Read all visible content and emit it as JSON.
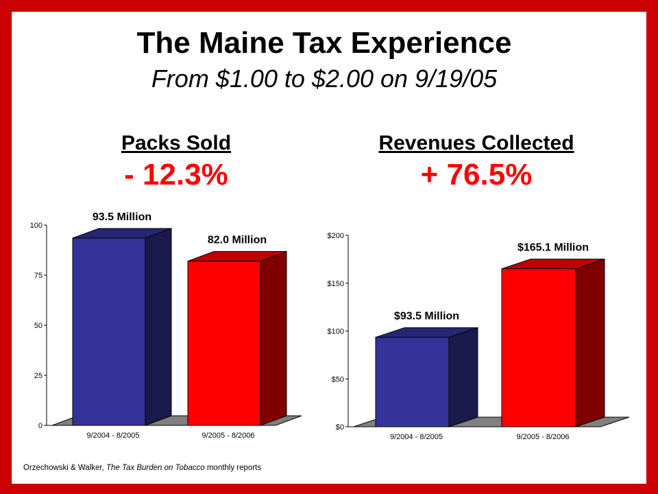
{
  "title": "The Maine Tax Experience",
  "subtitle": "From $1.00 to $2.00 on 9/19/05",
  "left_panel": {
    "heading": "Packs Sold",
    "change": "- 12.3%"
  },
  "right_panel": {
    "heading": "Revenues Collected",
    "change": "+ 76.5%"
  },
  "source": {
    "authors": "Orzechowski & Walker,",
    "publication": "The Tax Burden on Tobacco",
    "suffix": "monthly reports"
  },
  "colors": {
    "background": "#cc0000",
    "bar_blue": "#333399",
    "bar_red": "#ff0000",
    "change_text": "#ff0000"
  },
  "chart_data": [
    {
      "type": "bar",
      "categories": [
        "9/2004 - 8/2005",
        "9/2005 - 8/2006"
      ],
      "values": [
        93.5,
        82.0
      ],
      "data_labels": [
        "93.5 Million",
        "82.0 Million"
      ],
      "yticks": [
        "0",
        "25",
        "50",
        "75",
        "100"
      ],
      "ylim": [
        0,
        100
      ],
      "colors": [
        "#333399",
        "#ff0000"
      ],
      "grid": false
    },
    {
      "type": "bar",
      "categories": [
        "9/2004 - 8/2005",
        "9/2005 - 8/2006"
      ],
      "values": [
        93.5,
        165.1
      ],
      "data_labels": [
        "$93.5 Million",
        "$165.1 Million"
      ],
      "yticks": [
        "$0",
        "$50",
        "$100",
        "$150",
        "$200"
      ],
      "ylim": [
        0,
        200
      ],
      "colors": [
        "#333399",
        "#ff0000"
      ],
      "grid": false
    }
  ]
}
